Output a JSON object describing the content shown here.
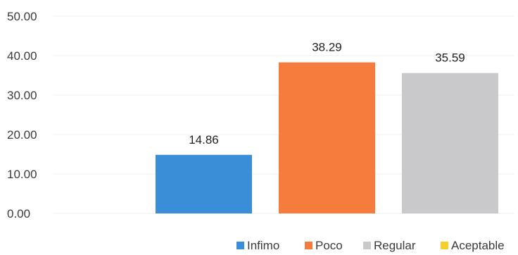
{
  "chart_data": {
    "type": "bar",
    "categories": [
      "Infimo",
      "Poco",
      "Regular",
      "Aceptable"
    ],
    "values": [
      14.86,
      38.29,
      35.59,
      0
    ],
    "data_labels": [
      "14.86",
      "38.29",
      "35.59",
      ""
    ],
    "colors": [
      "#3a8ed8",
      "#f57c3c",
      "#c9c9cc",
      "#f7cf2c"
    ],
    "title": "",
    "xlabel": "",
    "ylabel": "",
    "ylim": [
      0,
      50
    ],
    "yticks": [
      "0.00",
      "10.00",
      "20.00",
      "30.00",
      "40.00",
      "50.00"
    ],
    "grid": true,
    "legend": {
      "position": "bottom-right",
      "entries": [
        "Infimo",
        "Poco",
        "Regular",
        "Aceptable"
      ]
    }
  }
}
